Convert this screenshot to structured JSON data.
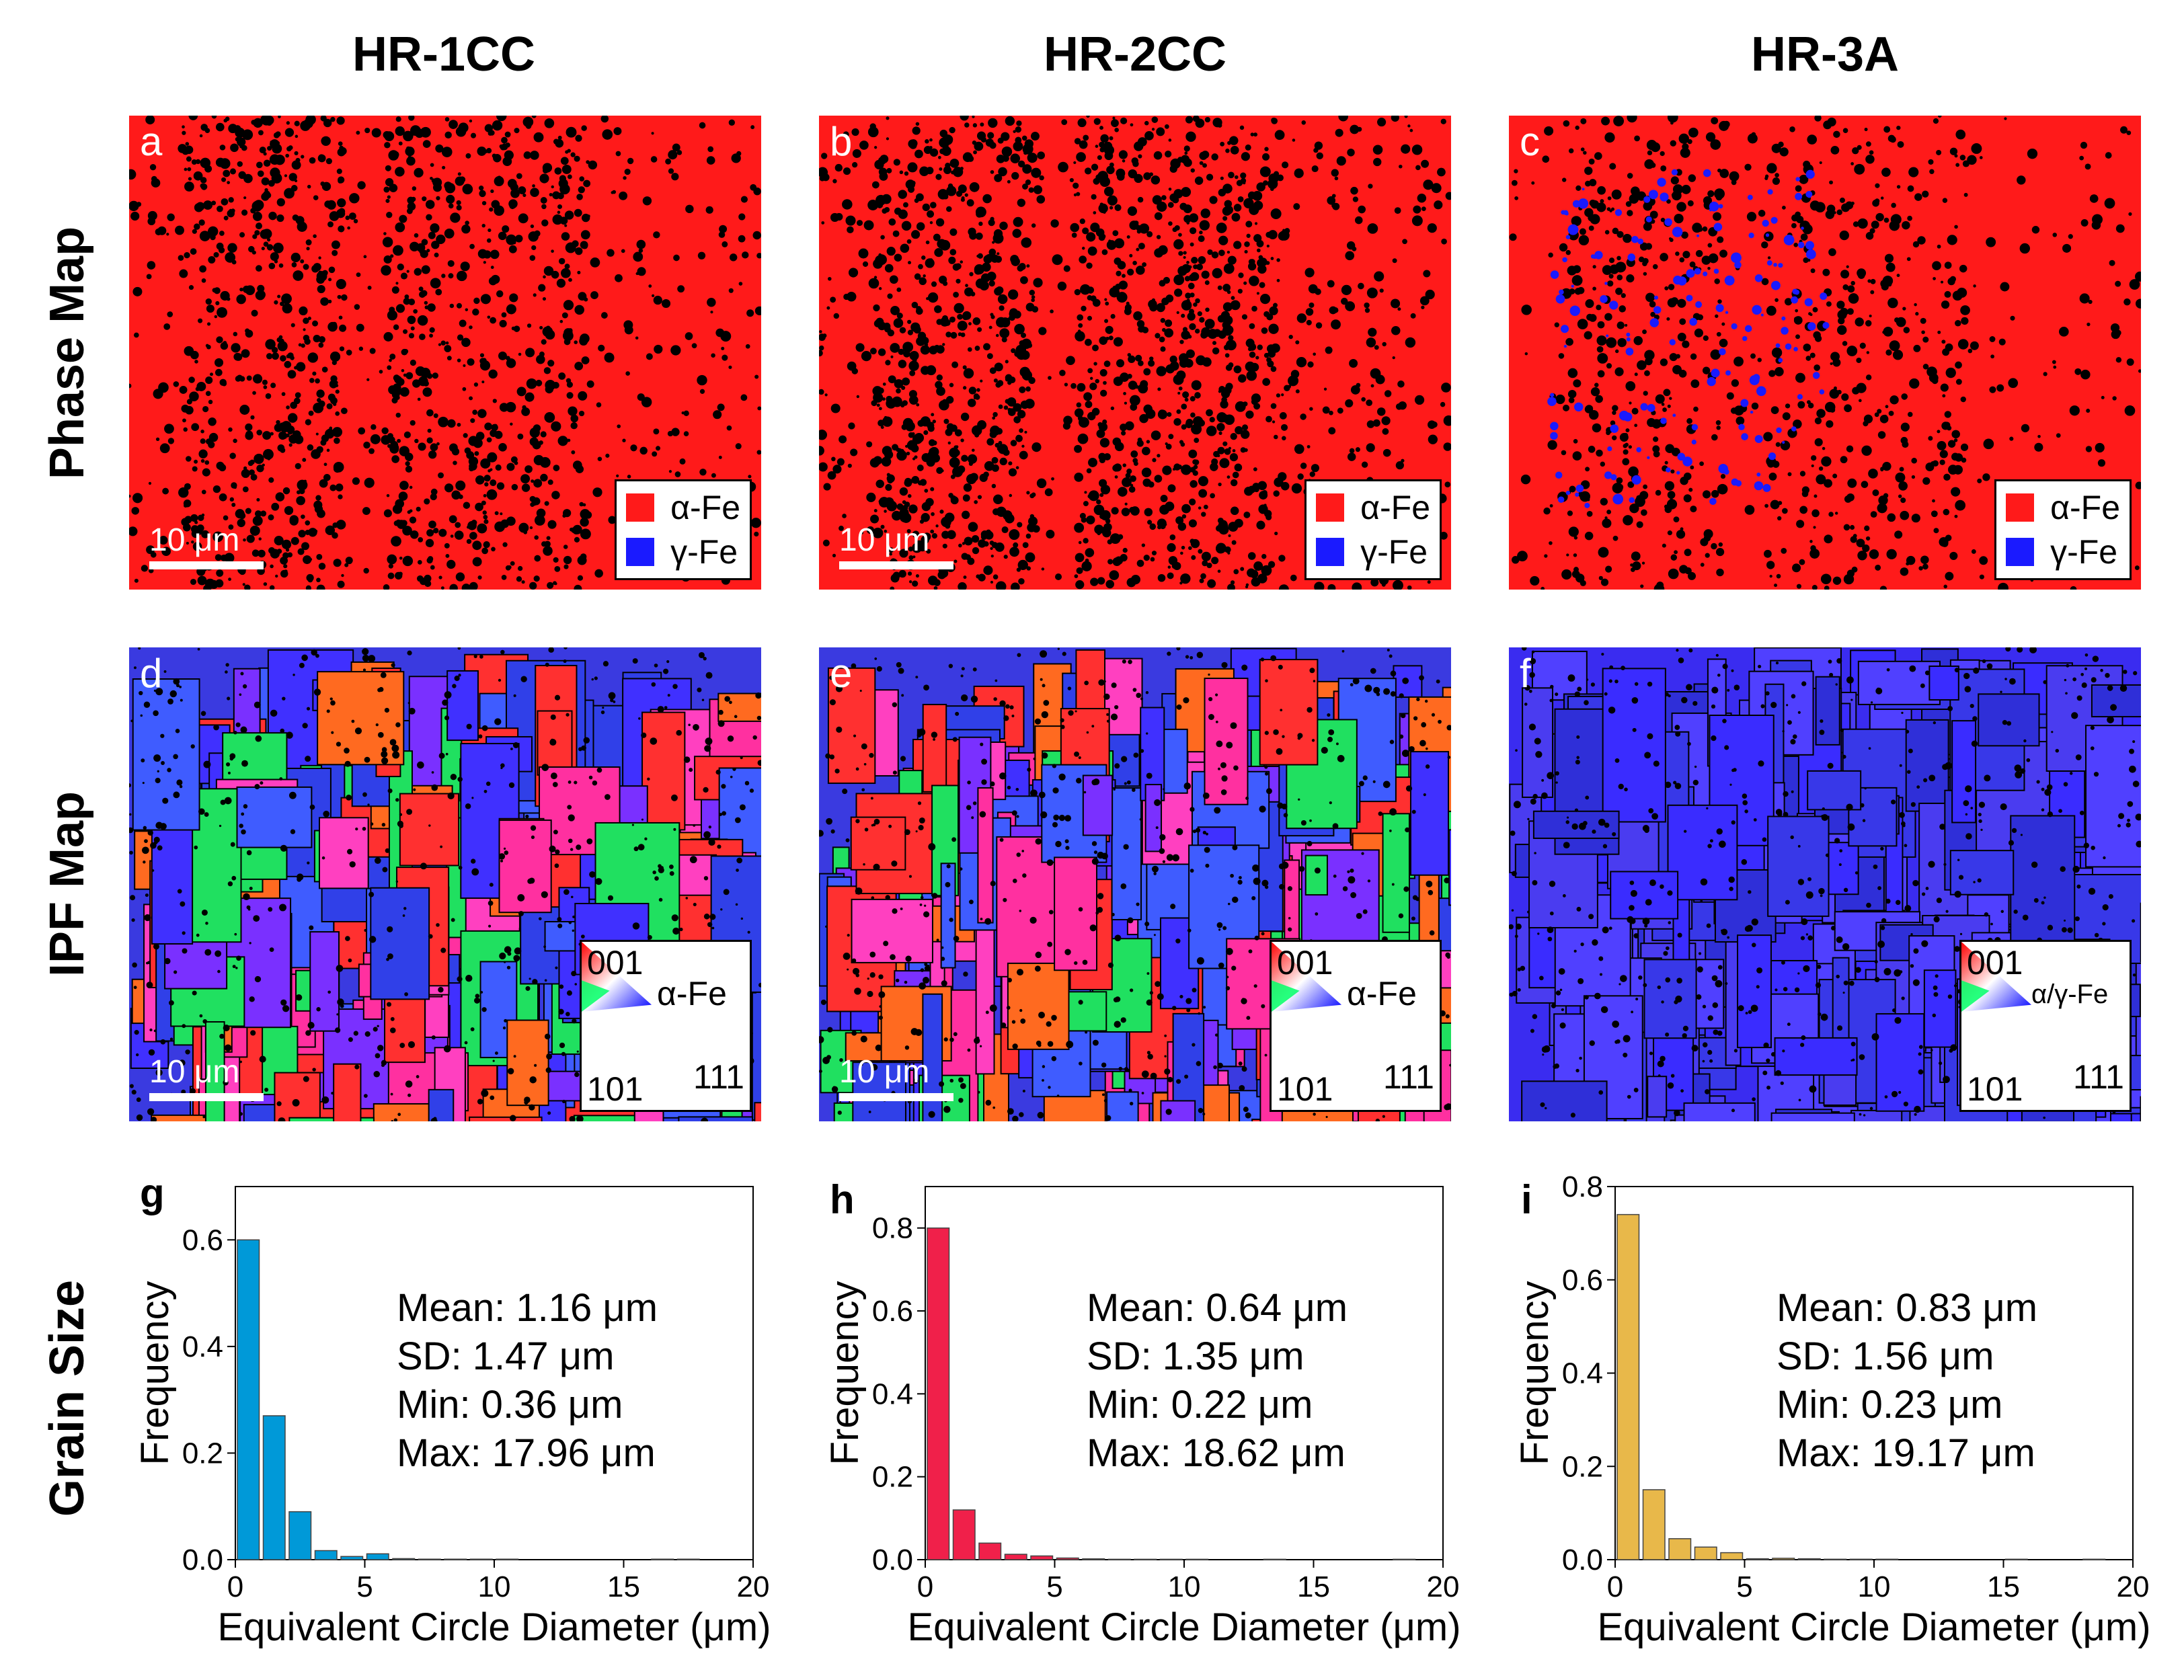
{
  "columns": [
    "HR-1CC",
    "HR-2CC",
    "HR-3A"
  ],
  "rows": [
    "Phase Map",
    "IPF Map",
    "Grain Size"
  ],
  "phase_maps": [
    {
      "letter": "a",
      "scale_label": "10 μm",
      "show_scale": true,
      "gamma": false
    },
    {
      "letter": "b",
      "scale_label": "10 μm",
      "show_scale": true,
      "gamma": false
    },
    {
      "letter": "c",
      "scale_label": "",
      "show_scale": false,
      "gamma": true
    }
  ],
  "phase_legend": {
    "alpha": "α-Fe",
    "gamma": "γ-Fe"
  },
  "ipf_maps": [
    {
      "letter": "d",
      "scale_label": "10 μm",
      "show_scale": true,
      "key_phase": "α-Fe",
      "style": "mixed"
    },
    {
      "letter": "e",
      "scale_label": "10 μm",
      "show_scale": true,
      "key_phase": "α-Fe",
      "style": "mixed"
    },
    {
      "letter": "f",
      "scale_label": "",
      "show_scale": false,
      "key_phase": "α/γ-Fe",
      "style": "blue"
    }
  ],
  "ipf_key": {
    "top": "001",
    "left": "101",
    "right": "111"
  },
  "colors": {
    "alpha": "#ff1a1a",
    "gamma": "#1a1aff",
    "chart_g": "#0099d8",
    "chart_h": "#f0204a",
    "chart_i": "#e8b84a"
  },
  "chart_data": [
    {
      "type": "bar",
      "letter": "g",
      "xlabel": "Equivalent Circle Diameter (μm)",
      "ylabel": "Frequency",
      "xlim": [
        0,
        20
      ],
      "ylim": [
        0,
        0.7
      ],
      "xticks": [
        0,
        5,
        10,
        15,
        20
      ],
      "yticks": [
        0.0,
        0.2,
        0.4,
        0.6
      ],
      "ytick_labels": [
        "0.0",
        "0.2",
        "0.4",
        "0.6"
      ],
      "bin_width": 1,
      "values": [
        0.6,
        0.27,
        0.09,
        0.017,
        0.006,
        0.011,
        0.002,
        0.001,
        0.001,
        0.001,
        0.001,
        0,
        0,
        0,
        0,
        0,
        0.001,
        0.001,
        0
      ],
      "stats": [
        "Mean: 1.16 μm",
        "SD: 1.47 μm",
        "Min: 0.36 μm",
        "Max: 17.96 μm"
      ]
    },
    {
      "type": "bar",
      "letter": "h",
      "xlabel": "Equivalent Circle Diameter (μm)",
      "ylabel": "Frequency",
      "xlim": [
        0,
        20
      ],
      "ylim": [
        0,
        0.9
      ],
      "xticks": [
        0,
        5,
        10,
        15,
        20
      ],
      "yticks": [
        0.0,
        0.2,
        0.4,
        0.6,
        0.8
      ],
      "ytick_labels": [
        "0.0",
        "0.2",
        "0.4",
        "0.6",
        "0.8"
      ],
      "bin_width": 1,
      "values": [
        0.8,
        0.12,
        0.04,
        0.013,
        0.009,
        0.004,
        0.002,
        0.001,
        0.001,
        0.001,
        0.001,
        0,
        0,
        0.001,
        0,
        0,
        0,
        0,
        0.001
      ],
      "stats": [
        "Mean: 0.64 μm",
        "SD: 1.35 μm",
        "Min: 0.22 μm",
        "Max: 18.62 μm"
      ]
    },
    {
      "type": "bar",
      "letter": "i",
      "xlabel": "Equivalent Circle Diameter (μm)",
      "ylabel": "Frequency",
      "xlim": [
        0,
        20
      ],
      "ylim": [
        0,
        0.8
      ],
      "xticks": [
        0,
        5,
        10,
        15,
        20
      ],
      "yticks": [
        0.0,
        0.2,
        0.4,
        0.6,
        0.8
      ],
      "ytick_labels": [
        "0.0",
        "0.2",
        "0.4",
        "0.6",
        "0.8"
      ],
      "bin_width": 1,
      "values": [
        0.74,
        0.15,
        0.045,
        0.027,
        0.015,
        0.002,
        0.003,
        0.002,
        0.001,
        0.001,
        0.001,
        0,
        0,
        0,
        0,
        0.001,
        0,
        0,
        0.001
      ],
      "stats": [
        "Mean: 0.83 μm",
        "SD: 1.56 μm",
        "Min: 0.23 μm",
        "Max: 19.17 μm"
      ]
    }
  ]
}
